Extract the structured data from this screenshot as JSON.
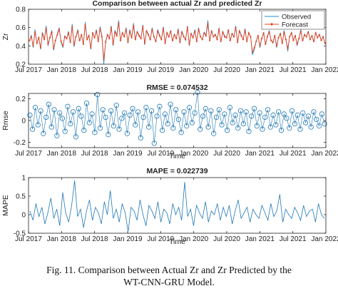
{
  "figure": {
    "caption_line1": "Fig. 11. Comparison between Actual Zr and Zr Predicted by the",
    "caption_line2": "WT-CNN-GRU Model."
  },
  "colors": {
    "observed": "#1f8fd6",
    "forecast": "#e8431f",
    "residual": "#1f77b4",
    "axis": "#222222",
    "grid": "#e0e0e0"
  },
  "chart_data": [
    {
      "type": "line",
      "title": "Comparison between actual Zr and predicted Zr",
      "xlabel": "",
      "ylabel": "Zr",
      "x_ticks": [
        "Jul 2017",
        "Jan 2018",
        "Jul 2018",
        "Jan 2019",
        "Jul 2019",
        "Jan 2020",
        "Jul 2020",
        "Jan 2021",
        "Jul 2021",
        "Jan 2022"
      ],
      "xlim": [
        "2017-07",
        "2022-01"
      ],
      "ylim": [
        0.2,
        0.8
      ],
      "y_ticks": [
        0.2,
        0.4,
        0.6,
        0.8
      ],
      "legend": {
        "position": "top-right",
        "entries": [
          "Observed",
          "Forecast"
        ]
      },
      "grid": false,
      "series": [
        {
          "name": "Observed",
          "color": "#1f8fd6",
          "marker": "none",
          "values": [
            0.45,
            0.52,
            0.38,
            0.58,
            0.42,
            0.5,
            0.36,
            0.55,
            0.47,
            0.62,
            0.4,
            0.49,
            0.57,
            0.35,
            0.46,
            0.53,
            0.6,
            0.44,
            0.38,
            0.51,
            0.48,
            0.56,
            0.43,
            0.64,
            0.39,
            0.5,
            0.58,
            0.45,
            0.53,
            0.41,
            0.66,
            0.47,
            0.52,
            0.36,
            0.55,
            0.49,
            0.58,
            0.44,
            0.61,
            0.51,
            0.2,
            0.45,
            0.53,
            0.48,
            0.62,
            0.4,
            0.57,
            0.52,
            0.68,
            0.45,
            0.55,
            0.5,
            0.6,
            0.43,
            0.58,
            0.49,
            0.65,
            0.47,
            0.56,
            0.52,
            0.48,
            0.63,
            0.41,
            0.57,
            0.53,
            0.46,
            0.6,
            0.5,
            0.44,
            0.58,
            0.52,
            0.47,
            0.61,
            0.42,
            0.55,
            0.5,
            0.57,
            0.45,
            0.53,
            0.48,
            0.59,
            0.43,
            0.56,
            0.51,
            0.46,
            0.62,
            0.4,
            0.54,
            0.49,
            0.58,
            0.44,
            0.6,
            0.5,
            0.47,
            0.55,
            0.52,
            0.68,
            0.45,
            0.57,
            0.5,
            0.53,
            0.47,
            0.6,
            0.44,
            0.56,
            0.51,
            0.49,
            0.58,
            0.45,
            0.54,
            0.5,
            0.62,
            0.43,
            0.57,
            0.52,
            0.47,
            0.59,
            0.44,
            0.55,
            0.5,
            0.3,
            0.36,
            0.45,
            0.52,
            0.38,
            0.48,
            0.55,
            0.41,
            0.5,
            0.57,
            0.46,
            0.43,
            0.52,
            0.38,
            0.49,
            0.54,
            0.42,
            0.57,
            0.47,
            0.34,
            0.5,
            0.55,
            0.46,
            0.52,
            0.4,
            0.48,
            0.58,
            0.45,
            0.53,
            0.5,
            0.56,
            0.47,
            0.51,
            0.44,
            0.55,
            0.49,
            0.53,
            0.46,
            0.5,
            0.42
          ]
        },
        {
          "name": "Forecast",
          "color": "#e8431f",
          "marker": "star",
          "values": [
            0.46,
            0.5,
            0.4,
            0.55,
            0.43,
            0.49,
            0.38,
            0.53,
            0.47,
            0.59,
            0.42,
            0.49,
            0.55,
            0.37,
            0.46,
            0.52,
            0.58,
            0.45,
            0.4,
            0.5,
            0.48,
            0.54,
            0.44,
            0.61,
            0.41,
            0.5,
            0.56,
            0.46,
            0.52,
            0.42,
            0.63,
            0.47,
            0.51,
            0.38,
            0.54,
            0.49,
            0.56,
            0.45,
            0.59,
            0.5,
            0.25,
            0.44,
            0.52,
            0.48,
            0.6,
            0.42,
            0.55,
            0.51,
            0.65,
            0.46,
            0.54,
            0.5,
            0.58,
            0.44,
            0.56,
            0.49,
            0.62,
            0.47,
            0.55,
            0.51,
            0.48,
            0.61,
            0.43,
            0.56,
            0.52,
            0.47,
            0.58,
            0.5,
            0.45,
            0.56,
            0.51,
            0.47,
            0.59,
            0.43,
            0.54,
            0.5,
            0.56,
            0.46,
            0.52,
            0.48,
            0.57,
            0.44,
            0.55,
            0.5,
            0.47,
            0.6,
            0.42,
            0.53,
            0.49,
            0.56,
            0.45,
            0.58,
            0.5,
            0.47,
            0.54,
            0.51,
            0.64,
            0.46,
            0.56,
            0.5,
            0.52,
            0.47,
            0.58,
            0.45,
            0.55,
            0.5,
            0.49,
            0.57,
            0.46,
            0.53,
            0.5,
            0.6,
            0.44,
            0.56,
            0.51,
            0.47,
            0.57,
            0.45,
            0.54,
            0.5,
            0.33,
            0.38,
            0.45,
            0.51,
            0.4,
            0.48,
            0.54,
            0.42,
            0.5,
            0.55,
            0.46,
            0.44,
            0.51,
            0.4,
            0.49,
            0.53,
            0.43,
            0.55,
            0.47,
            0.37,
            0.5,
            0.54,
            0.46,
            0.51,
            0.42,
            0.48,
            0.56,
            0.46,
            0.52,
            0.5,
            0.55,
            0.47,
            0.51,
            0.45,
            0.54,
            0.49,
            0.52,
            0.46,
            0.5,
            0.43
          ]
        }
      ]
    },
    {
      "type": "scatter",
      "title": "RMSE = 0.074532",
      "xlabel": "Time",
      "ylabel": "Rmse",
      "x_ticks": [
        "Jul 2017",
        "Jan 2018",
        "Jul 2018",
        "Jan 2019",
        "Jul 2019",
        "Jan 2020",
        "Jul 2020",
        "Jan 2021",
        "Jul 2021",
        "Jan 2022"
      ],
      "xlim": [
        "2017-07",
        "2022-01"
      ],
      "ylim": [
        -0.25,
        0.25
      ],
      "y_ticks": [
        -0.2,
        0,
        0.2
      ],
      "grid": false,
      "series": [
        {
          "name": "",
          "color": "#1f77b4",
          "marker": "circle",
          "values": [
            0.05,
            -0.08,
            0.12,
            -0.04,
            0.09,
            -0.12,
            0.03,
            0.15,
            -0.06,
            0.1,
            -0.14,
            0.07,
            0.02,
            -0.1,
            0.13,
            -0.03,
            0.08,
            -0.15,
            0.11,
            0.04,
            -0.09,
            0.16,
            -0.02,
            0.06,
            -0.11,
            0.24,
            -0.07,
            0.1,
            0.03,
            -0.13,
            0.09,
            -0.05,
            0.14,
            -0.08,
            0.02,
            0.07,
            -0.12,
            0.05,
            0.11,
            -0.04,
            0.08,
            -0.16,
            0.03,
            0.12,
            -0.06,
            0.09,
            -0.21,
            0.04,
            0.13,
            -0.09,
            0.06,
            -0.03,
            0.15,
            -0.07,
            0.1,
            0.01,
            -0.11,
            0.08,
            -0.05,
            0.12,
            -0.02,
            0.07,
            0.26,
            -0.08,
            0.04,
            0.11,
            -0.06,
            0.09,
            -0.12,
            0.03,
            0.1,
            -0.04,
            0.06,
            -0.09,
            0.12,
            -0.02,
            0.05,
            -0.07,
            0.09,
            -0.03,
            0.08,
            -0.1,
            0.04,
            0.11,
            -0.05,
            0.07,
            -0.08,
            0.03,
            0.1,
            -0.06,
            0.05,
            -0.04,
            0.08,
            -0.09,
            0.06,
            0.02,
            -0.07,
            0.09,
            -0.03,
            0.05,
            -0.08,
            0.07,
            -0.02,
            0.04,
            -0.06,
            0.08,
            0.01,
            -0.05,
            0.06,
            -0.03
          ]
        }
      ]
    },
    {
      "type": "line",
      "title": "MAPE = 0.022739",
      "xlabel": "Time",
      "ylabel": "MAPE",
      "x_ticks": [
        "Jul 2017",
        "Jan 2018",
        "Jul 2018",
        "Jan 2019",
        "Jul 2019",
        "Jan 2020",
        "Jul 2020",
        "Jan 2021",
        "Jul 2021",
        "Jan 2022"
      ],
      "xlim": [
        "2017-07",
        "2022-01"
      ],
      "ylim": [
        -0.5,
        1.0
      ],
      "y_ticks": [
        -0.5,
        0,
        0.5,
        1
      ],
      "grid": false,
      "series": [
        {
          "name": "",
          "color": "#1f77b4",
          "marker": "none",
          "values": [
            0.1,
            -0.15,
            0.3,
            -0.05,
            0.2,
            -0.25,
            0.05,
            0.45,
            -0.1,
            0.15,
            -0.3,
            0.6,
            0.05,
            -0.2,
            0.25,
            0.92,
            -0.05,
            0.15,
            -0.35,
            0.1,
            0.4,
            -0.15,
            0.2,
            0.05,
            -0.25,
            0.35,
            0.0,
            0.65,
            -0.1,
            0.15,
            -0.2,
            0.3,
            0.05,
            -0.45,
            0.2,
            0.1,
            -0.15,
            0.4,
            0.0,
            -0.3,
            0.25,
            0.1,
            -0.1,
            0.35,
            -0.2,
            0.15,
            0.05,
            -0.25,
            0.3,
            0.0,
            0.2,
            -0.15,
            0.88,
            -0.05,
            0.15,
            -0.3,
            0.25,
            0.05,
            -0.1,
            0.35,
            -0.2,
            0.1,
            0.0,
            0.3,
            -0.15,
            0.2,
            -0.05,
            0.25,
            -0.25,
            0.1,
            0.4,
            -0.1,
            0.05,
            0.2,
            -0.2,
            0.15,
            0.0,
            -0.1,
            0.25,
            0.05,
            -0.15,
            0.3,
            -0.05,
            0.1,
            0.55,
            -0.2,
            0.15,
            0.0,
            -0.1,
            0.2,
            0.05,
            -0.15,
            0.25,
            -0.05,
            0.1,
            0.15,
            -0.2,
            0.3,
            0.0,
            -0.1
          ]
        }
      ]
    }
  ]
}
